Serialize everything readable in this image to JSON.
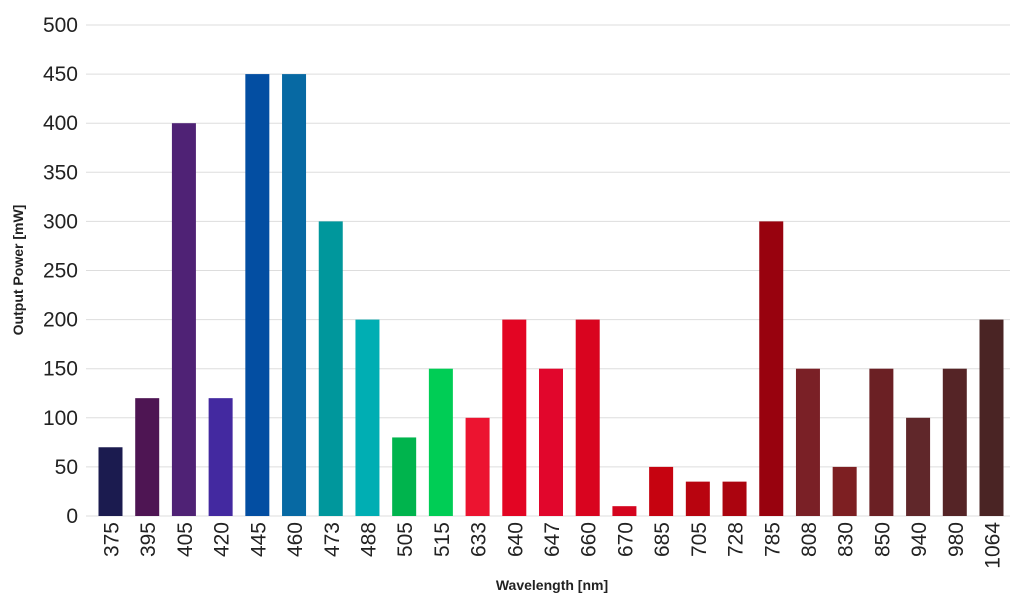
{
  "chart_data": {
    "type": "bar",
    "title": "",
    "xlabel": "Wavelength [nm]",
    "ylabel": "Output Power [mW]",
    "ylim": [
      0,
      500
    ],
    "yticks": [
      "0",
      "50",
      "100",
      "150",
      "200",
      "250",
      "300",
      "350",
      "400",
      "450",
      "500"
    ],
    "grid": true,
    "legend": "none",
    "categories": [
      "375",
      "395",
      "405",
      "420",
      "445",
      "460",
      "473",
      "488",
      "505",
      "515",
      "633",
      "640",
      "647",
      "660",
      "670",
      "685",
      "705",
      "728",
      "785",
      "808",
      "830",
      "850",
      "940",
      "980",
      "1064"
    ],
    "values": [
      70,
      120,
      400,
      120,
      450,
      450,
      300,
      200,
      80,
      150,
      100,
      200,
      150,
      200,
      10,
      50,
      35,
      35,
      300,
      150,
      50,
      150,
      100,
      150,
      200
    ],
    "colors": [
      "#1b1b4f",
      "#4e1553",
      "#4f2275",
      "#4329a0",
      "#034ea2",
      "#0769a3",
      "#00979c",
      "#00aeb3",
      "#00b44d",
      "#00cd55",
      "#ec1430",
      "#e30523",
      "#e1062c",
      "#d9041f",
      "#d4041e",
      "#c60310",
      "#b8040f",
      "#ab040f",
      "#98020e",
      "#7a2026",
      "#7d1f22",
      "#6b2024",
      "#60272a",
      "#552426",
      "#4a2424"
    ]
  }
}
